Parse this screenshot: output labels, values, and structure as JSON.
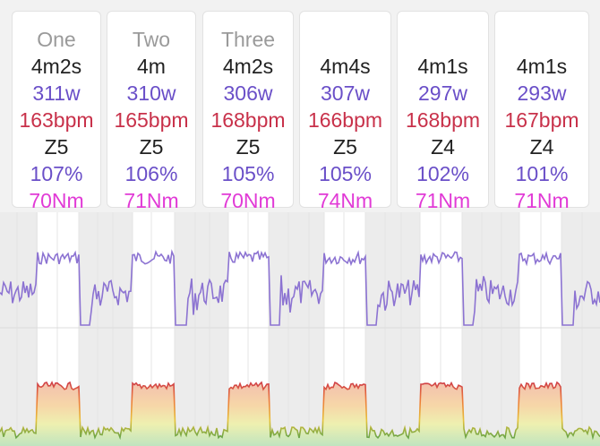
{
  "laps": [
    {
      "label": "One",
      "duration": "4m2s",
      "power": "311w",
      "heart_rate": "163bpm",
      "zone": "Z5",
      "percent": "107%",
      "torque": "70Nm"
    },
    {
      "label": "Two",
      "duration": "4m",
      "power": "310w",
      "heart_rate": "165bpm",
      "zone": "Z5",
      "percent": "106%",
      "torque": "71Nm"
    },
    {
      "label": "Three",
      "duration": "4m2s",
      "power": "306w",
      "heart_rate": "168bpm",
      "zone": "Z5",
      "percent": "105%",
      "torque": "70Nm"
    },
    {
      "label": "",
      "duration": "4m4s",
      "power": "307w",
      "heart_rate": "166bpm",
      "zone": "Z5",
      "percent": "105%",
      "torque": "74Nm"
    },
    {
      "label": "",
      "duration": "4m1s",
      "power": "297w",
      "heart_rate": "168bpm",
      "zone": "Z4",
      "percent": "102%",
      "torque": "71Nm"
    },
    {
      "label": "",
      "duration": "4m1s",
      "power": "293w",
      "heart_rate": "167bpm",
      "zone": "Z4",
      "percent": "101%",
      "torque": "71Nm"
    }
  ],
  "colors": {
    "label": "#9a9a9a",
    "duration": "#222222",
    "power": "#6a4fc8",
    "heart_rate": "#c8314a",
    "zone": "#222222",
    "percent": "#6a4fc8",
    "torque": "#e13ad6",
    "power_line": "#8c73d2",
    "hr_zone_low": "#3e9a4a",
    "hr_zone_mid": "#e6c23a",
    "hr_zone_high": "#d23a3a"
  }
}
